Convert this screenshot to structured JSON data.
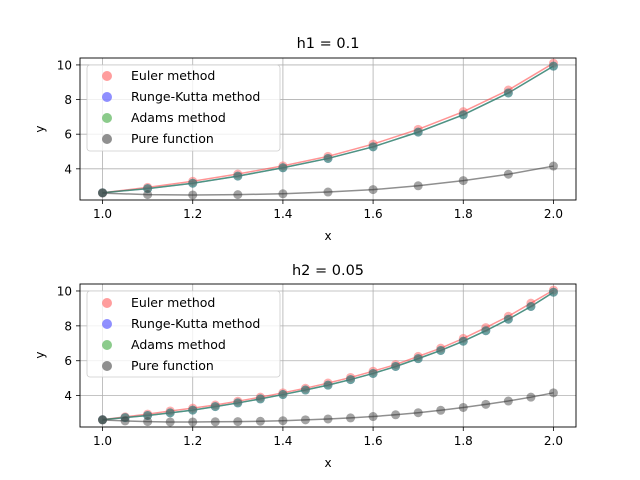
{
  "chart_data": [
    {
      "type": "scatter",
      "title": "h1 = 0.1",
      "xlabel": "x",
      "ylabel": "y",
      "xlim": [
        0.95,
        2.05
      ],
      "ylim": [
        2.2,
        10.4
      ],
      "xticks": [
        "1.0",
        "1.2",
        "1.4",
        "1.6",
        "1.8",
        "2.0"
      ],
      "yticks": [
        "4",
        "6",
        "8",
        "10"
      ],
      "grid": true,
      "legend_position": "upper-left",
      "x": [
        1.0,
        1.1,
        1.2,
        1.3,
        1.4,
        1.5,
        1.6,
        1.7,
        1.8,
        1.9,
        2.0
      ],
      "series": [
        {
          "name": "Euler method",
          "color": "#ff4d4d",
          "values": [
            2.62,
            2.93,
            3.28,
            3.7,
            4.17,
            4.72,
            5.43,
            6.28,
            7.3,
            8.55,
            10.1
          ]
        },
        {
          "name": "Runge-Kutta method",
          "color": "#3333ff",
          "values": [
            2.62,
            2.86,
            3.17,
            3.58,
            4.06,
            4.6,
            5.27,
            6.12,
            7.12,
            8.38,
            9.93
          ]
        },
        {
          "name": "Adams method",
          "color": "#2ca02c",
          "values": [
            2.62,
            2.86,
            3.17,
            3.58,
            4.06,
            4.6,
            5.27,
            6.12,
            7.12,
            8.38,
            9.93
          ]
        },
        {
          "name": "Pure function",
          "color": "#333333",
          "values": [
            2.6,
            2.51,
            2.49,
            2.51,
            2.56,
            2.66,
            2.8,
            3.02,
            3.32,
            3.69,
            4.16
          ]
        }
      ]
    },
    {
      "type": "scatter",
      "title": "h2 = 0.05",
      "xlabel": "x",
      "ylabel": "y",
      "xlim": [
        0.95,
        2.05
      ],
      "ylim": [
        2.2,
        10.4
      ],
      "xticks": [
        "1.0",
        "1.2",
        "1.4",
        "1.6",
        "1.8",
        "2.0"
      ],
      "yticks": [
        "4",
        "6",
        "8",
        "10"
      ],
      "grid": true,
      "legend_position": "upper-left",
      "x": [
        1.0,
        1.05,
        1.1,
        1.15,
        1.2,
        1.25,
        1.3,
        1.35,
        1.4,
        1.45,
        1.5,
        1.55,
        1.6,
        1.65,
        1.7,
        1.75,
        1.8,
        1.85,
        1.9,
        1.95,
        2.0
      ],
      "series": [
        {
          "name": "Euler method",
          "color": "#ff4d4d",
          "values": [
            2.62,
            2.78,
            2.94,
            3.12,
            3.28,
            3.46,
            3.68,
            3.91,
            4.16,
            4.42,
            4.72,
            5.04,
            5.4,
            5.78,
            6.25,
            6.72,
            7.28,
            7.9,
            8.55,
            9.3,
            10.05
          ]
        },
        {
          "name": "Runge-Kutta method",
          "color": "#3333ff",
          "values": [
            2.62,
            2.74,
            2.86,
            3.01,
            3.17,
            3.37,
            3.58,
            3.81,
            4.06,
            4.32,
            4.6,
            4.92,
            5.27,
            5.67,
            6.12,
            6.59,
            7.12,
            7.72,
            8.38,
            9.11,
            9.93
          ]
        },
        {
          "name": "Adams method",
          "color": "#2ca02c",
          "values": [
            2.62,
            2.74,
            2.86,
            3.01,
            3.17,
            3.37,
            3.58,
            3.81,
            4.06,
            4.32,
            4.6,
            4.92,
            5.27,
            5.67,
            6.12,
            6.59,
            7.12,
            7.72,
            8.38,
            9.11,
            9.93
          ]
        },
        {
          "name": "Pure function",
          "color": "#333333",
          "values": [
            2.6,
            2.55,
            2.51,
            2.49,
            2.49,
            2.5,
            2.51,
            2.53,
            2.56,
            2.61,
            2.66,
            2.72,
            2.8,
            2.9,
            3.02,
            3.16,
            3.32,
            3.5,
            3.69,
            3.91,
            4.16
          ]
        }
      ]
    }
  ]
}
